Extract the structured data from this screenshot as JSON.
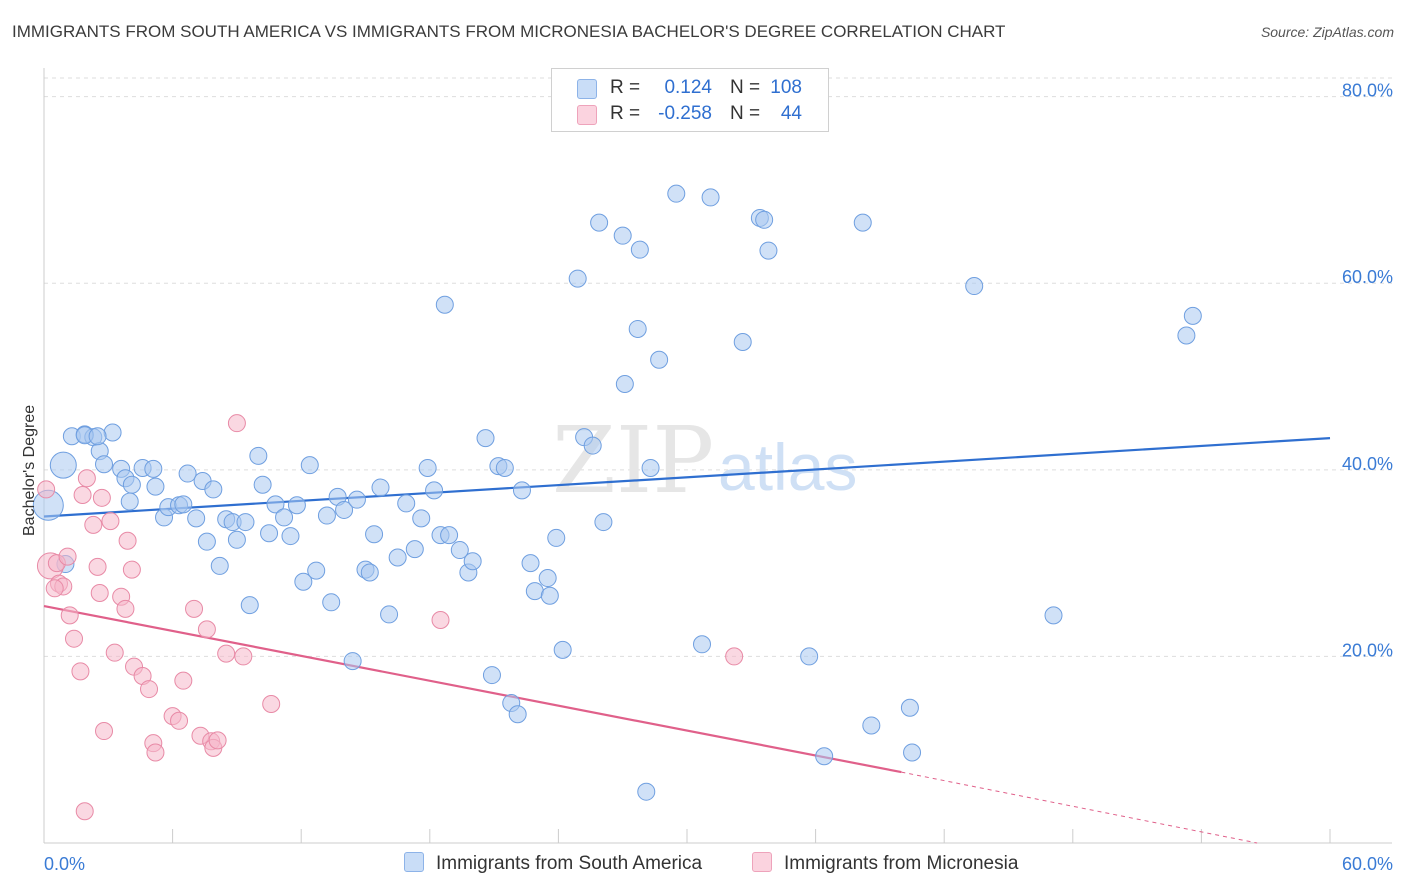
{
  "header": {
    "title": "IMMIGRANTS FROM SOUTH AMERICA VS IMMIGRANTS FROM MICRONESIA BACHELOR'S DEGREE CORRELATION CHART",
    "source": "Source: ZipAtlas.com"
  },
  "watermark": {
    "zip": "ZIP",
    "atlas": "atlas"
  },
  "legend": {
    "rows": [
      {
        "r_label": "R =",
        "r_value": "0.124",
        "n_label": "N =",
        "n_value": "108",
        "color": "#a9c8f0"
      },
      {
        "r_label": "R =",
        "r_value": "-0.258",
        "n_label": "N =",
        "n_value": "44",
        "color": "#f5b8ca"
      }
    ]
  },
  "bottom_legend": {
    "items": [
      {
        "label": "Immigrants from South America",
        "color": "#a9c8f0"
      },
      {
        "label": "Immigrants from Micronesia",
        "color": "#f5b8ca"
      }
    ]
  },
  "colors": {
    "blue_fill": "#a9c8f0",
    "blue_stroke": "#6f9fe0",
    "blue_line": "#2f6fd0",
    "pink_fill": "#f5b8ca",
    "pink_stroke": "#e88aa6",
    "pink_line": "#e0608a",
    "tick_text": "#3a7bd5",
    "grid": "#dddddd"
  },
  "chart_data": {
    "type": "scatter",
    "title": "IMMIGRANTS FROM SOUTH AMERICA VS IMMIGRANTS FROM MICRONESIA BACHELOR'S DEGREE CORRELATION CHART",
    "xlabel": "",
    "ylabel": "Bachelor's Degree",
    "xlim": [
      0,
      60
    ],
    "ylim": [
      0,
      82
    ],
    "x_ticks": [
      "0.0%",
      "60.0%"
    ],
    "y_ticks": [
      {
        "value": 20,
        "label": "20.0%"
      },
      {
        "value": 40,
        "label": "40.0%"
      },
      {
        "value": 60,
        "label": "60.0%"
      },
      {
        "value": 80,
        "label": "80.0%"
      }
    ],
    "grid": true,
    "legend_position": "top-center",
    "series": [
      {
        "name": "Immigrants from South America",
        "color": "#a9c8f0",
        "trend": {
          "x": [
            0,
            60
          ],
          "y": [
            35.0,
            43.4
          ]
        },
        "points": [
          [
            0.2,
            36.2,
            3
          ],
          [
            0.9,
            40.5,
            2
          ],
          [
            1.3,
            43.6,
            1
          ],
          [
            1.9,
            43.8,
            1
          ],
          [
            2.3,
            43.5,
            1
          ],
          [
            3.2,
            44.0,
            1
          ],
          [
            2.6,
            42.0,
            1
          ],
          [
            2.8,
            40.6,
            1
          ],
          [
            3.6,
            40.1,
            1
          ],
          [
            3.8,
            39.1,
            1
          ],
          [
            4.1,
            38.4,
            1
          ],
          [
            4.6,
            40.2,
            1
          ],
          [
            5.1,
            40.1,
            1
          ],
          [
            5.2,
            38.2,
            1
          ],
          [
            4.0,
            36.6,
            1
          ],
          [
            5.6,
            34.9,
            1
          ],
          [
            5.8,
            36.0,
            1
          ],
          [
            6.3,
            36.2,
            1
          ],
          [
            6.5,
            36.3,
            1
          ],
          [
            6.7,
            39.6,
            1
          ],
          [
            7.1,
            34.8,
            1
          ],
          [
            7.4,
            38.8,
            1
          ],
          [
            7.6,
            32.3,
            1
          ],
          [
            7.9,
            37.9,
            1
          ],
          [
            8.2,
            29.7,
            1
          ],
          [
            8.5,
            34.7,
            1
          ],
          [
            8.8,
            34.4,
            1
          ],
          [
            9.0,
            32.5,
            1
          ],
          [
            9.4,
            34.4,
            1
          ],
          [
            9.6,
            25.5,
            1
          ],
          [
            10.0,
            41.5,
            1
          ],
          [
            10.2,
            38.4,
            1
          ],
          [
            10.5,
            33.2,
            1
          ],
          [
            10.8,
            36.3,
            1
          ],
          [
            11.2,
            34.9,
            1
          ],
          [
            11.5,
            32.9,
            1
          ],
          [
            11.8,
            36.2,
            1
          ],
          [
            12.1,
            28.0,
            1
          ],
          [
            12.4,
            40.5,
            1
          ],
          [
            12.7,
            29.2,
            1
          ],
          [
            13.2,
            35.1,
            1
          ],
          [
            13.4,
            25.8,
            1
          ],
          [
            13.7,
            37.1,
            1
          ],
          [
            14.0,
            35.7,
            1
          ],
          [
            14.4,
            19.5,
            1
          ],
          [
            14.6,
            36.8,
            1
          ],
          [
            15.0,
            29.3,
            1
          ],
          [
            15.2,
            29.0,
            1
          ],
          [
            15.4,
            33.1,
            1
          ],
          [
            15.7,
            38.1,
            1
          ],
          [
            16.1,
            24.5,
            1
          ],
          [
            16.5,
            30.6,
            1
          ],
          [
            16.9,
            36.4,
            1
          ],
          [
            17.3,
            31.5,
            1
          ],
          [
            17.6,
            34.8,
            1
          ],
          [
            17.9,
            40.2,
            1
          ],
          [
            18.2,
            37.8,
            1
          ],
          [
            18.5,
            33.0,
            1
          ],
          [
            18.7,
            57.7,
            1
          ],
          [
            18.9,
            33.0,
            1
          ],
          [
            19.4,
            31.4,
            1
          ],
          [
            19.8,
            29.0,
            1
          ],
          [
            20.0,
            30.2,
            1
          ],
          [
            20.6,
            43.4,
            1
          ],
          [
            20.9,
            18.0,
            1
          ],
          [
            21.2,
            40.4,
            1
          ],
          [
            21.5,
            40.2,
            1
          ],
          [
            21.8,
            15.0,
            1
          ],
          [
            22.1,
            13.8,
            1
          ],
          [
            22.3,
            37.8,
            1
          ],
          [
            22.7,
            30.0,
            1
          ],
          [
            22.9,
            27.0,
            1
          ],
          [
            23.5,
            28.4,
            1
          ],
          [
            23.6,
            26.5,
            1
          ],
          [
            23.9,
            32.7,
            1
          ],
          [
            24.2,
            20.7,
            1
          ],
          [
            24.9,
            60.5,
            1
          ],
          [
            25.2,
            43.5,
            1
          ],
          [
            25.6,
            42.6,
            1
          ],
          [
            25.9,
            66.5,
            1
          ],
          [
            26.1,
            34.4,
            1
          ],
          [
            27.0,
            65.1,
            1
          ],
          [
            27.1,
            49.2,
            1
          ],
          [
            27.7,
            55.1,
            1
          ],
          [
            27.8,
            63.6,
            1
          ],
          [
            28.1,
            5.5,
            1
          ],
          [
            28.3,
            40.2,
            1
          ],
          [
            28.7,
            51.8,
            1
          ],
          [
            29.5,
            69.6,
            1
          ],
          [
            30.7,
            21.3,
            1
          ],
          [
            31.1,
            69.2,
            1
          ],
          [
            32.6,
            53.7,
            1
          ],
          [
            33.4,
            67.0,
            1
          ],
          [
            33.6,
            66.8,
            1
          ],
          [
            33.8,
            63.5,
            1
          ],
          [
            35.7,
            20.0,
            1
          ],
          [
            36.4,
            9.3,
            1
          ],
          [
            38.2,
            66.5,
            1
          ],
          [
            38.6,
            12.6,
            1
          ],
          [
            40.4,
            14.5,
            1
          ],
          [
            40.5,
            9.7,
            1
          ],
          [
            43.4,
            59.7,
            1
          ],
          [
            47.1,
            24.4,
            1
          ],
          [
            53.3,
            54.4,
            1
          ],
          [
            53.6,
            56.5,
            1
          ],
          [
            1.0,
            29.9,
            1
          ],
          [
            1.9,
            43.7,
            1
          ],
          [
            2.5,
            43.6,
            1
          ]
        ]
      },
      {
        "name": "Immigrants from Micronesia",
        "color": "#f5b8ca",
        "trend": {
          "x": [
            0,
            40.0
          ],
          "y": [
            25.4,
            7.6
          ]
        },
        "trend_dashed": {
          "x": [
            40.0,
            56.6
          ],
          "y": [
            7.6,
            0.0
          ]
        },
        "points": [
          [
            0.1,
            37.9,
            1
          ],
          [
            0.3,
            29.7,
            2
          ],
          [
            0.6,
            30.0,
            1
          ],
          [
            0.7,
            27.8,
            1
          ],
          [
            0.9,
            27.5,
            1
          ],
          [
            1.1,
            30.7,
            1
          ],
          [
            1.2,
            24.4,
            1
          ],
          [
            1.4,
            21.9,
            1
          ],
          [
            1.7,
            18.4,
            1
          ],
          [
            1.9,
            3.4,
            1
          ],
          [
            2.0,
            39.1,
            1
          ],
          [
            1.8,
            37.3,
            1
          ],
          [
            2.3,
            34.1,
            1
          ],
          [
            2.5,
            29.6,
            1
          ],
          [
            2.7,
            37.0,
            1
          ],
          [
            2.6,
            26.8,
            1
          ],
          [
            2.8,
            12.0,
            1
          ],
          [
            3.1,
            34.5,
            1
          ],
          [
            3.3,
            20.4,
            1
          ],
          [
            3.6,
            26.4,
            1
          ],
          [
            3.8,
            25.1,
            1
          ],
          [
            3.9,
            32.4,
            1
          ],
          [
            4.1,
            29.3,
            1
          ],
          [
            4.2,
            18.9,
            1
          ],
          [
            4.6,
            17.9,
            1
          ],
          [
            4.9,
            16.5,
            1
          ],
          [
            5.1,
            10.7,
            1
          ],
          [
            5.2,
            9.7,
            1
          ],
          [
            6.0,
            13.6,
            1
          ],
          [
            6.3,
            13.1,
            1
          ],
          [
            6.5,
            17.4,
            1
          ],
          [
            7.0,
            25.1,
            1
          ],
          [
            7.3,
            11.5,
            1
          ],
          [
            7.6,
            22.9,
            1
          ],
          [
            7.8,
            10.9,
            1
          ],
          [
            7.9,
            10.2,
            1
          ],
          [
            8.1,
            11.0,
            1
          ],
          [
            8.5,
            20.3,
            1
          ],
          [
            9.0,
            45.0,
            1
          ],
          [
            9.3,
            20.0,
            1
          ],
          [
            10.6,
            14.9,
            1
          ],
          [
            18.5,
            23.9,
            1
          ],
          [
            32.2,
            20.0,
            1
          ],
          [
            0.5,
            27.3,
            1
          ]
        ]
      }
    ]
  }
}
